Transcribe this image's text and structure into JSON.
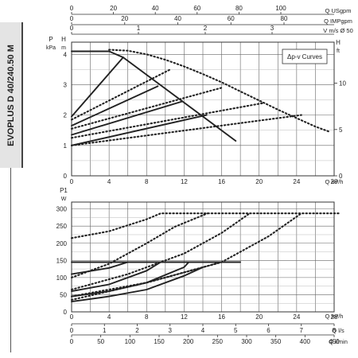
{
  "product_label": "EVOPLUS D 40/240.50 M",
  "legend_box": "Δp-v Curves",
  "top_axes": [
    {
      "ticks": [
        "0",
        "20",
        "40",
        "60",
        "80",
        "100"
      ],
      "unit": "Q USgpm"
    },
    {
      "ticks": [
        "0",
        "20",
        "40",
        "60",
        "80"
      ],
      "unit": "Q IMPgpm"
    },
    {
      "ticks": [
        "0",
        "1",
        "2",
        "3"
      ],
      "unit": "V m/s Ø 50"
    }
  ],
  "bottom_axes": [
    {
      "ticks": [
        "0",
        "1",
        "2",
        "3",
        "4",
        "5",
        "6",
        "7",
        "8"
      ],
      "unit": "Q l/s"
    },
    {
      "ticks": [
        "0",
        "50",
        "100",
        "150",
        "200",
        "250",
        "300",
        "350",
        "400",
        "450"
      ],
      "unit": "Q l/min"
    }
  ],
  "chart_data": [
    {
      "type": "line",
      "name": "head-curves",
      "xlabel": "Q m³/h",
      "ylabel": "P kPa",
      "ylabel_right": "H ft",
      "ylabel_left2": "H m",
      "x_ticks": [
        "0",
        "4",
        "8",
        "12",
        "16",
        "20",
        "24",
        "28"
      ],
      "y_ticks": [
        "0",
        "1",
        "2",
        "3",
        "4"
      ],
      "y_right_ticks": [
        "0",
        "5",
        "10"
      ],
      "xlim": [
        0,
        28
      ],
      "ylim": [
        0,
        4.4
      ],
      "grid": true,
      "series": [
        {
          "style": "solid",
          "x": [
            0,
            4,
            5.5,
            17.5
          ],
          "y": [
            4.1,
            4.1,
            3.9,
            1.15
          ]
        },
        {
          "style": "solid",
          "x": [
            0,
            5.5
          ],
          "y": [
            1.95,
            3.9
          ]
        },
        {
          "style": "solid",
          "x": [
            0,
            9.2
          ],
          "y": [
            1.65,
            2.95
          ]
        },
        {
          "style": "solid",
          "x": [
            0,
            11.8
          ],
          "y": [
            1.35,
            2.45
          ]
        },
        {
          "style": "solid",
          "x": [
            0,
            14.4
          ],
          "y": [
            1.0,
            2.0
          ]
        },
        {
          "style": "dashed",
          "x": [
            4,
            6,
            8,
            10,
            12,
            14,
            16,
            18,
            20,
            22,
            24,
            26,
            27.5
          ],
          "y": [
            4.15,
            4.12,
            4.0,
            3.82,
            3.6,
            3.35,
            3.08,
            2.78,
            2.48,
            2.18,
            1.9,
            1.62,
            1.45
          ]
        },
        {
          "style": "dashed",
          "x": [
            0,
            10.5
          ],
          "y": [
            1.85,
            3.5
          ]
        },
        {
          "style": "dashed",
          "x": [
            0,
            16
          ],
          "y": [
            1.55,
            2.9
          ]
        },
        {
          "style": "dashed",
          "x": [
            0,
            20.5
          ],
          "y": [
            1.25,
            2.4
          ]
        },
        {
          "style": "dashed",
          "x": [
            0,
            24.5
          ],
          "y": [
            1.0,
            2.0
          ]
        }
      ]
    },
    {
      "type": "line",
      "name": "power-curves",
      "xlabel": "Q m³/h",
      "ylabel": "P1 W",
      "x_ticks": [
        "0",
        "4",
        "8",
        "12",
        "16",
        "20",
        "24",
        "28"
      ],
      "y_ticks": [
        "0",
        "50",
        "100",
        "150",
        "200",
        "250",
        "300"
      ],
      "xlim": [
        0,
        28
      ],
      "ylim": [
        0,
        320
      ],
      "grid": true,
      "series": [
        {
          "style": "solid",
          "x": [
            0,
            18
          ],
          "y": [
            145,
            145
          ]
        },
        {
          "style": "solid",
          "x": [
            0,
            4,
            6
          ],
          "y": [
            110,
            128,
            145
          ]
        },
        {
          "style": "solid",
          "x": [
            0,
            4,
            8,
            9.5
          ],
          "y": [
            60,
            80,
            120,
            145
          ]
        },
        {
          "style": "solid",
          "x": [
            0,
            4,
            8,
            12,
            12.5
          ],
          "y": [
            45,
            60,
            85,
            130,
            145
          ]
        },
        {
          "style": "solid",
          "x": [
            0,
            4,
            8,
            12,
            14
          ],
          "y": [
            30,
            45,
            65,
            105,
            130
          ]
        },
        {
          "style": "dashed",
          "x": [
            0,
            4,
            8,
            9.5,
            28.5
          ],
          "y": [
            215,
            235,
            270,
            287,
            287
          ]
        },
        {
          "style": "dashed",
          "x": [
            0,
            4,
            8,
            11,
            14.5
          ],
          "y": [
            100,
            140,
            200,
            248,
            287
          ]
        },
        {
          "style": "dashed",
          "x": [
            0,
            6,
            12,
            16,
            19
          ],
          "y": [
            65,
            110,
            170,
            230,
            287
          ]
        },
        {
          "style": "dashed",
          "x": [
            0,
            8,
            16,
            21,
            24.5
          ],
          "y": [
            45,
            85,
            145,
            220,
            287
          ]
        },
        {
          "style": "dashed",
          "x": [
            0,
            4,
            8,
            12,
            16
          ],
          "y": [
            35,
            60,
            85,
            115,
            145
          ]
        }
      ]
    }
  ]
}
